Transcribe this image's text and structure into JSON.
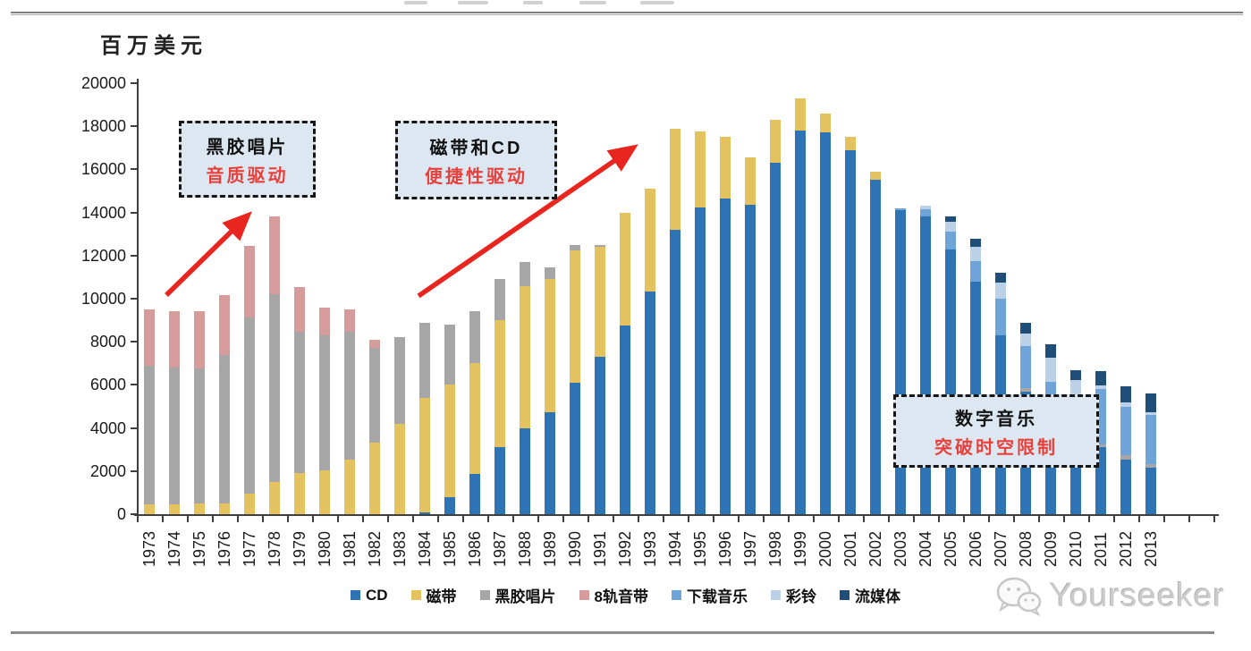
{
  "chart": {
    "unit_label": "百万美元",
    "annotations": [
      {
        "title": "黑胶唱片",
        "subtitle": "音质驱动"
      },
      {
        "title": "磁带和CD",
        "subtitle": "便捷性驱动"
      },
      {
        "title": "数字音乐",
        "subtitle": "突破时空限制"
      }
    ],
    "arrow_color": "#e8251f",
    "axis_color": "#3f3f3f"
  },
  "chart_data": {
    "type": "bar",
    "stacked": true,
    "title": "",
    "ylabel": "百万美元",
    "ylim": [
      0,
      20000
    ],
    "y_tick_step": 2000,
    "y_tick_labels": [
      "0",
      "2000",
      "4000",
      "6000",
      "8000",
      "10000",
      "12000",
      "14000",
      "16000",
      "18000",
      "20000"
    ],
    "grid": false,
    "legend_position": "bottom",
    "categories": [
      1973,
      1974,
      1975,
      1976,
      1977,
      1978,
      1979,
      1980,
      1981,
      1982,
      1983,
      1984,
      1985,
      1986,
      1987,
      1988,
      1989,
      1990,
      1991,
      1992,
      1993,
      1994,
      1995,
      1996,
      1997,
      1998,
      1999,
      2000,
      2001,
      2002,
      2003,
      2004,
      2005,
      2006,
      2007,
      2008,
      2009,
      2010,
      2011,
      2012,
      2013
    ],
    "series": [
      {
        "key": "cd",
        "name": "CD",
        "color": "#2e74b5",
        "values": [
          0,
          0,
          0,
          0,
          0,
          0,
          0,
          0,
          0,
          0,
          0,
          100,
          800,
          1850,
          3100,
          4000,
          4750,
          6100,
          7300,
          8750,
          10350,
          13200,
          14250,
          14650,
          14350,
          16300,
          17800,
          17700,
          16900,
          15500,
          14100,
          13800,
          12300,
          10800,
          8300,
          5700,
          4300,
          3400,
          3100,
          2550,
          2150
        ]
      },
      {
        "key": "cassette",
        "name": "磁带",
        "color": "#e3c25f",
        "values": [
          450,
          450,
          480,
          480,
          950,
          1500,
          1900,
          2050,
          2550,
          3300,
          4200,
          5300,
          5200,
          5150,
          5900,
          6600,
          6150,
          6150,
          5100,
          5250,
          4750,
          4700,
          3500,
          2850,
          2200,
          2000,
          1500,
          900,
          600,
          400,
          0,
          0,
          0,
          0,
          0,
          0,
          0,
          0,
          0,
          0,
          0
        ]
      },
      {
        "key": "vinyl",
        "name": "黑胶唱片",
        "color": "#a6a6a6",
        "values": [
          6450,
          6350,
          6300,
          6900,
          8200,
          8700,
          6550,
          6250,
          5900,
          4400,
          4000,
          3500,
          2800,
          2400,
          1900,
          1100,
          550,
          250,
          100,
          0,
          0,
          0,
          0,
          0,
          0,
          0,
          0,
          0,
          0,
          0,
          0,
          0,
          0,
          0,
          0,
          150,
          100,
          100,
          140,
          200,
          180
        ]
      },
      {
        "key": "eight-track",
        "name": "8轨音带",
        "color": "#d59c9b",
        "values": [
          2600,
          2600,
          2620,
          2770,
          3300,
          3600,
          2100,
          1300,
          1050,
          400,
          0,
          0,
          0,
          0,
          0,
          0,
          0,
          0,
          0,
          0,
          0,
          0,
          0,
          0,
          0,
          0,
          0,
          0,
          0,
          0,
          0,
          0,
          0,
          0,
          0,
          0,
          0,
          0,
          0,
          0,
          0
        ]
      },
      {
        "key": "download",
        "name": "下载音乐",
        "color": "#6fa4d9",
        "values": [
          0,
          0,
          0,
          0,
          0,
          0,
          0,
          0,
          0,
          0,
          0,
          0,
          0,
          0,
          0,
          0,
          0,
          0,
          0,
          0,
          0,
          0,
          0,
          0,
          0,
          0,
          0,
          0,
          0,
          0,
          100,
          350,
          800,
          950,
          1700,
          1950,
          1750,
          1900,
          2550,
          2250,
          2280
        ]
      },
      {
        "key": "ringtone",
        "name": "彩铃",
        "color": "#bcd0e8",
        "values": [
          0,
          0,
          0,
          0,
          0,
          0,
          0,
          0,
          0,
          0,
          0,
          0,
          0,
          0,
          0,
          0,
          0,
          0,
          0,
          0,
          0,
          0,
          0,
          0,
          0,
          0,
          0,
          0,
          0,
          0,
          0,
          150,
          450,
          650,
          750,
          600,
          1100,
          820,
          190,
          200,
          110
        ]
      },
      {
        "key": "streaming",
        "name": "流媒体",
        "color": "#1f4e79",
        "values": [
          0,
          0,
          0,
          0,
          0,
          0,
          0,
          0,
          0,
          0,
          0,
          0,
          0,
          0,
          0,
          0,
          0,
          0,
          0,
          0,
          0,
          0,
          0,
          0,
          0,
          0,
          0,
          0,
          0,
          0,
          0,
          0,
          250,
          400,
          450,
          500,
          650,
          480,
          650,
          750,
          890
        ]
      }
    ]
  },
  "watermark": {
    "text": "Yourseeker",
    "icon": "wechat-icon"
  }
}
